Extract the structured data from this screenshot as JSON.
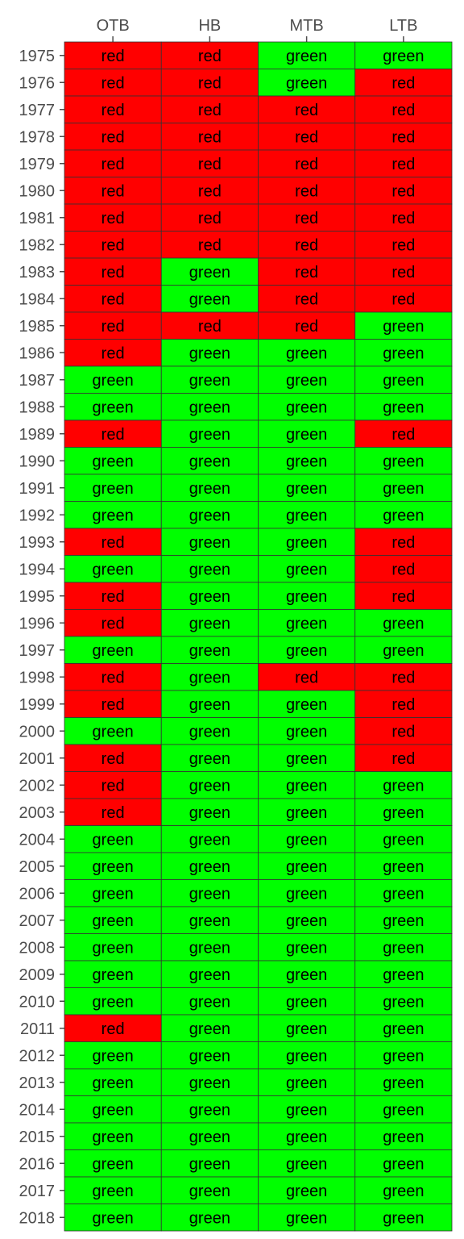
{
  "chart_data": {
    "type": "heatmap",
    "title": "",
    "xlabel": "",
    "ylabel": "",
    "x_axis_position": "top",
    "grid": false,
    "legend": "none",
    "columns": [
      "OTB",
      "HB",
      "MTB",
      "LTB"
    ],
    "colors": {
      "red": "#ff0000",
      "green": "#00ff00",
      "border": "#333333",
      "tick_text": "#4d4d4d"
    },
    "rows": [
      {
        "year": "1975",
        "values": [
          "red",
          "red",
          "green",
          "green"
        ]
      },
      {
        "year": "1976",
        "values": [
          "red",
          "red",
          "green",
          "red"
        ]
      },
      {
        "year": "1977",
        "values": [
          "red",
          "red",
          "red",
          "red"
        ]
      },
      {
        "year": "1978",
        "values": [
          "red",
          "red",
          "red",
          "red"
        ]
      },
      {
        "year": "1979",
        "values": [
          "red",
          "red",
          "red",
          "red"
        ]
      },
      {
        "year": "1980",
        "values": [
          "red",
          "red",
          "red",
          "red"
        ]
      },
      {
        "year": "1981",
        "values": [
          "red",
          "red",
          "red",
          "red"
        ]
      },
      {
        "year": "1982",
        "values": [
          "red",
          "red",
          "red",
          "red"
        ]
      },
      {
        "year": "1983",
        "values": [
          "red",
          "green",
          "red",
          "red"
        ]
      },
      {
        "year": "1984",
        "values": [
          "red",
          "green",
          "red",
          "red"
        ]
      },
      {
        "year": "1985",
        "values": [
          "red",
          "red",
          "red",
          "green"
        ]
      },
      {
        "year": "1986",
        "values": [
          "red",
          "green",
          "green",
          "green"
        ]
      },
      {
        "year": "1987",
        "values": [
          "green",
          "green",
          "green",
          "green"
        ]
      },
      {
        "year": "1988",
        "values": [
          "green",
          "green",
          "green",
          "green"
        ]
      },
      {
        "year": "1989",
        "values": [
          "red",
          "green",
          "green",
          "red"
        ]
      },
      {
        "year": "1990",
        "values": [
          "green",
          "green",
          "green",
          "green"
        ]
      },
      {
        "year": "1991",
        "values": [
          "green",
          "green",
          "green",
          "green"
        ]
      },
      {
        "year": "1992",
        "values": [
          "green",
          "green",
          "green",
          "green"
        ]
      },
      {
        "year": "1993",
        "values": [
          "red",
          "green",
          "green",
          "red"
        ]
      },
      {
        "year": "1994",
        "values": [
          "green",
          "green",
          "green",
          "red"
        ]
      },
      {
        "year": "1995",
        "values": [
          "red",
          "green",
          "green",
          "red"
        ]
      },
      {
        "year": "1996",
        "values": [
          "red",
          "green",
          "green",
          "green"
        ]
      },
      {
        "year": "1997",
        "values": [
          "green",
          "green",
          "green",
          "green"
        ]
      },
      {
        "year": "1998",
        "values": [
          "red",
          "green",
          "red",
          "red"
        ]
      },
      {
        "year": "1999",
        "values": [
          "red",
          "green",
          "green",
          "red"
        ]
      },
      {
        "year": "2000",
        "values": [
          "green",
          "green",
          "green",
          "red"
        ]
      },
      {
        "year": "2001",
        "values": [
          "red",
          "green",
          "green",
          "red"
        ]
      },
      {
        "year": "2002",
        "values": [
          "red",
          "green",
          "green",
          "green"
        ]
      },
      {
        "year": "2003",
        "values": [
          "red",
          "green",
          "green",
          "green"
        ]
      },
      {
        "year": "2004",
        "values": [
          "green",
          "green",
          "green",
          "green"
        ]
      },
      {
        "year": "2005",
        "values": [
          "green",
          "green",
          "green",
          "green"
        ]
      },
      {
        "year": "2006",
        "values": [
          "green",
          "green",
          "green",
          "green"
        ]
      },
      {
        "year": "2007",
        "values": [
          "green",
          "green",
          "green",
          "green"
        ]
      },
      {
        "year": "2008",
        "values": [
          "green",
          "green",
          "green",
          "green"
        ]
      },
      {
        "year": "2009",
        "values": [
          "green",
          "green",
          "green",
          "green"
        ]
      },
      {
        "year": "2010",
        "values": [
          "green",
          "green",
          "green",
          "green"
        ]
      },
      {
        "year": "2011",
        "values": [
          "red",
          "green",
          "green",
          "green"
        ]
      },
      {
        "year": "2012",
        "values": [
          "green",
          "green",
          "green",
          "green"
        ]
      },
      {
        "year": "2013",
        "values": [
          "green",
          "green",
          "green",
          "green"
        ]
      },
      {
        "year": "2014",
        "values": [
          "green",
          "green",
          "green",
          "green"
        ]
      },
      {
        "year": "2015",
        "values": [
          "green",
          "green",
          "green",
          "green"
        ]
      },
      {
        "year": "2016",
        "values": [
          "green",
          "green",
          "green",
          "green"
        ]
      },
      {
        "year": "2017",
        "values": [
          "green",
          "green",
          "green",
          "green"
        ]
      },
      {
        "year": "2018",
        "values": [
          "green",
          "green",
          "green",
          "green"
        ]
      }
    ]
  }
}
